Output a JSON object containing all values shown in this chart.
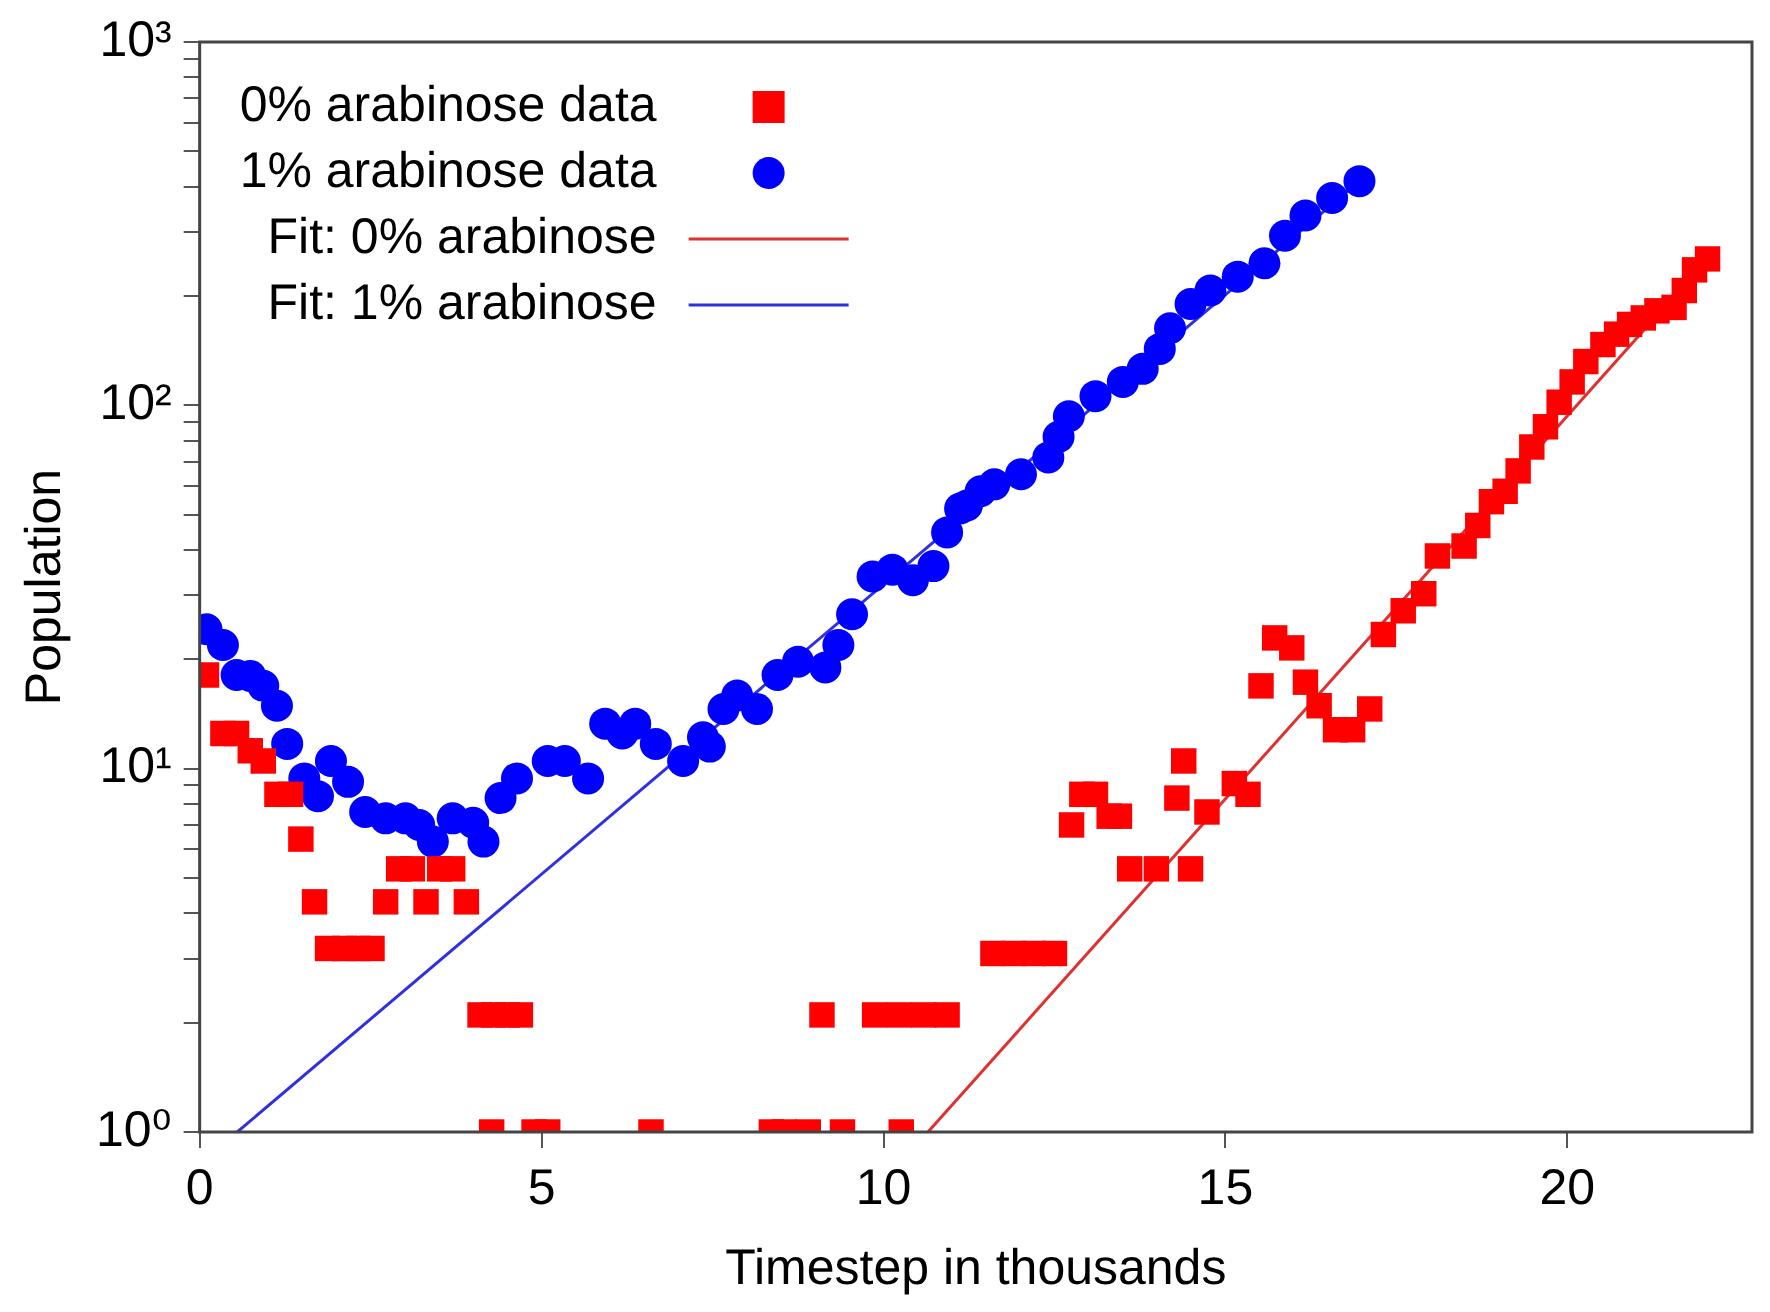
{
  "chart_data": {
    "type": "scatter",
    "xlabel": "Timestep in thousands",
    "ylabel": "Population",
    "log": "y",
    "legend": "top left",
    "grid": false,
    "xlim": [
      0,
      22.7
    ],
    "xticks": [
      0,
      5,
      10,
      15,
      20
    ],
    "ylim": [
      1,
      1000
    ],
    "yticks": [
      {
        "value": 1,
        "label": "10⁰"
      },
      {
        "value": 2,
        "label": null
      },
      {
        "value": 3,
        "label": null
      },
      {
        "value": 4,
        "label": null
      },
      {
        "value": 5,
        "label": null
      },
      {
        "value": 6,
        "label": null
      },
      {
        "value": 7,
        "label": null
      },
      {
        "value": 8,
        "label": null
      },
      {
        "value": 9,
        "label": null
      },
      {
        "value": 10,
        "label": "10¹"
      },
      {
        "value": 20,
        "label": null
      },
      {
        "value": 30,
        "label": null
      },
      {
        "value": 40,
        "label": null
      },
      {
        "value": 50,
        "label": null
      },
      {
        "value": 60,
        "label": null
      },
      {
        "value": 70,
        "label": null
      },
      {
        "value": 80,
        "label": null
      },
      {
        "value": 90,
        "label": null
      },
      {
        "value": 100,
        "label": "10²"
      },
      {
        "value": 200,
        "label": null
      },
      {
        "value": 300,
        "label": null
      },
      {
        "value": 400,
        "label": null
      },
      {
        "value": 500,
        "label": null
      },
      {
        "value": 600,
        "label": null
      },
      {
        "value": 700,
        "label": null
      },
      {
        "value": 800,
        "label": null
      },
      {
        "value": 900,
        "label": null
      },
      {
        "value": 1000,
        "label": "10³"
      }
    ],
    "series": [
      {
        "name": "0% arabinose data",
        "marker": "square",
        "color": "#ff0000",
        "x": [
          0.1,
          0.34,
          0.54,
          0.74,
          0.93,
          1.13,
          1.33,
          1.48,
          1.68,
          1.87,
          2.12,
          2.32,
          2.52,
          2.72,
          2.91,
          3.11,
          3.31,
          3.51,
          3.7,
          3.9,
          4.1,
          4.3,
          4.5,
          4.69,
          4.27,
          4.89,
          5.09,
          6.6,
          8.36,
          8.55,
          8.9,
          9.4,
          10.26,
          9.1,
          9.87,
          10.23,
          10.59,
          10.93,
          11.6,
          11.9,
          12.2,
          12.5,
          12.75,
          12.9,
          13.1,
          13.3,
          13.45,
          13.6,
          13.99,
          14.29,
          14.39,
          14.49,
          14.73,
          15.13,
          15.33,
          15.52,
          15.72,
          15.97,
          16.17,
          16.37,
          16.61,
          16.86,
          17.11,
          17.31,
          17.6,
          17.9,
          18.1,
          18.49,
          18.69,
          18.89,
          19.09,
          19.28,
          19.48,
          19.68,
          19.88,
          20.07,
          20.27,
          20.52,
          20.72,
          20.91,
          21.11,
          21.31,
          21.56,
          21.71,
          21.86,
          22.05
        ],
        "values": [
          18.1,
          12.5,
          12.5,
          11.2,
          10.5,
          8.5,
          8.5,
          6.4,
          4.3,
          3.2,
          3.2,
          3.2,
          3.2,
          4.3,
          5.3,
          5.3,
          4.3,
          5.3,
          5.3,
          4.3,
          2.1,
          2.1,
          2.1,
          2.1,
          1,
          1,
          1,
          1,
          1,
          1,
          1,
          1,
          1,
          2.1,
          2.1,
          2.1,
          2.1,
          2.1,
          3.1,
          3.1,
          3.1,
          3.1,
          7,
          8.5,
          8.5,
          7.4,
          7.4,
          5.3,
          5.3,
          8.3,
          10.5,
          5.3,
          7.6,
          9.1,
          8.5,
          16.9,
          22.9,
          21.5,
          17.3,
          14.9,
          12.8,
          12.8,
          14.6,
          23.4,
          27.2,
          30.3,
          38.5,
          41,
          46.7,
          54.3,
          58,
          66,
          76.8,
          87.3,
          102,
          116,
          132,
          147,
          157,
          167,
          174,
          182,
          186,
          207,
          236,
          253
        ]
      },
      {
        "name": "1% arabinose data",
        "marker": "circle",
        "color": "#0000ff",
        "x": [
          0.1,
          0.34,
          0.54,
          0.74,
          0.93,
          1.13,
          1.28,
          1.53,
          1.73,
          1.92,
          2.17,
          2.42,
          2.72,
          3.01,
          3.21,
          3.41,
          3.7,
          4.0,
          4.15,
          4.4,
          4.64,
          5.09,
          5.34,
          5.68,
          5.93,
          6.18,
          6.37,
          6.67,
          7.07,
          7.36,
          7.46,
          7.66,
          7.86,
          8.15,
          8.45,
          8.75,
          9.15,
          9.34,
          9.54,
          9.84,
          10.13,
          10.43,
          10.73,
          10.93,
          11.12,
          11.22,
          11.42,
          11.62,
          12.01,
          12.41,
          12.56,
          12.71,
          13.1,
          13.5,
          13.79,
          14.04,
          14.19,
          14.49,
          14.78,
          15.18,
          15.57,
          15.87,
          16.17,
          16.56,
          16.96
        ],
        "values": [
          24.2,
          21.9,
          18.1,
          18,
          16.9,
          14.9,
          11.7,
          9.4,
          8.4,
          10.5,
          9.2,
          7.6,
          7.3,
          7.3,
          7,
          6.3,
          7.3,
          7.1,
          6.3,
          8.3,
          9.4,
          10.5,
          10.5,
          9.4,
          13.3,
          12.5,
          13.3,
          11.7,
          10.5,
          12.2,
          11.5,
          14.6,
          15.9,
          14.6,
          18.1,
          19.7,
          19,
          21.9,
          26.6,
          33.8,
          35.3,
          33,
          36.1,
          44.7,
          52,
          53,
          58,
          60.6,
          64.6,
          71.9,
          81.9,
          93.3,
          106,
          116,
          126,
          143,
          163,
          190,
          207,
          226,
          246,
          293,
          333,
          372,
          414
        ]
      },
      {
        "name": "Fit: 0% arabinose",
        "type": "line",
        "marker": "none",
        "color": "#e03030",
        "x": [
          10.65,
          22.05
        ],
        "values": [
          1,
          253
        ]
      },
      {
        "name": "Fit: 1% arabinose",
        "type": "line",
        "marker": "none",
        "color": "#3030e0",
        "x": [
          0.55,
          16.96
        ],
        "values": [
          1,
          414
        ]
      }
    ]
  }
}
